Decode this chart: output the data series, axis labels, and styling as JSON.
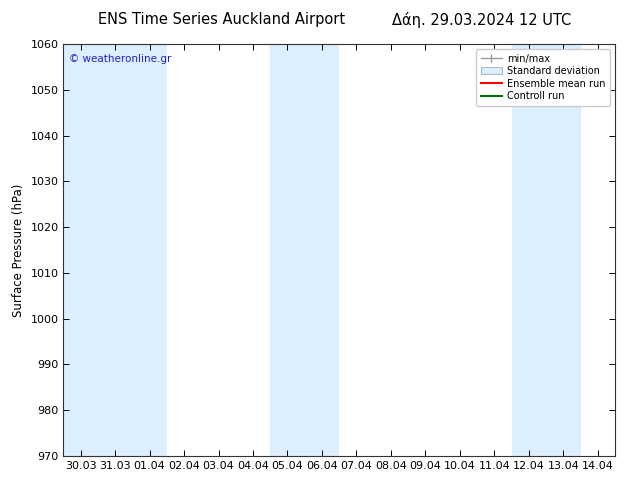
{
  "title_left": "ENS Time Series Auckland Airport",
  "title_right": "Δάη. 29.03.2024 12 UTC",
  "ylabel": "Surface Pressure (hPa)",
  "ylim": [
    970,
    1060
  ],
  "yticks": [
    970,
    980,
    990,
    1000,
    1010,
    1020,
    1030,
    1040,
    1050,
    1060
  ],
  "x_labels": [
    "30.03",
    "31.03",
    "01.04",
    "02.04",
    "03.04",
    "04.04",
    "05.04",
    "06.04",
    "07.04",
    "08.04",
    "09.04",
    "10.04",
    "11.04",
    "12.04",
    "13.04",
    "14.04"
  ],
  "x_values": [
    0,
    1,
    2,
    3,
    4,
    5,
    6,
    7,
    8,
    9,
    10,
    11,
    12,
    13,
    14,
    15
  ],
  "stripe_color": "#ddeeff",
  "stripe_positions": [
    0,
    1,
    2,
    6,
    7,
    13,
    14
  ],
  "watermark": "© weatheronline.gr",
  "watermark_color": "#2222cc",
  "legend_items": [
    "min/max",
    "Standard deviation",
    "Ensemble mean run",
    "Controll run"
  ],
  "legend_colors_line": [
    "#999999",
    "#bbccdd",
    "#ff0000",
    "#007700"
  ],
  "bg_color": "#ffffff",
  "title_fontsize": 10.5,
  "axis_fontsize": 8.5,
  "tick_fontsize": 8
}
